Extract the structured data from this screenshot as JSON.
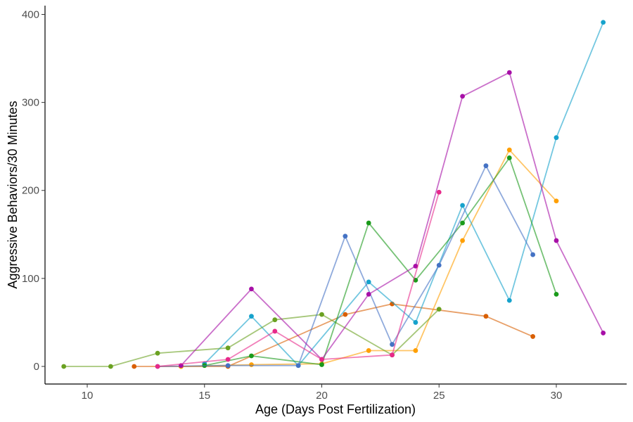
{
  "chart_data": {
    "type": "line",
    "title": "",
    "xlabel": "Age (Days Post Fertilization)",
    "ylabel": "Aggressive Behaviors/30 Minutes",
    "xlim": [
      8.2,
      33.0
    ],
    "ylim": [
      -20,
      410
    ],
    "xticks": [
      10,
      15,
      20,
      25,
      30
    ],
    "yticks": [
      0,
      100,
      200,
      300,
      400
    ],
    "grid": false,
    "legend": "none",
    "series": [
      {
        "color": "#D95F02",
        "x": [
          12,
          14,
          16,
          21,
          23,
          27,
          29
        ],
        "y": [
          0,
          0,
          0,
          59,
          71,
          57,
          34
        ]
      },
      {
        "color": "#FF9F00",
        "x": [
          14,
          17,
          20,
          22,
          24,
          26,
          28,
          30
        ],
        "y": [
          0,
          2,
          3,
          18,
          18,
          143,
          246,
          188
        ]
      },
      {
        "color": "#16A2CC",
        "x": [
          15,
          17,
          19,
          22,
          24,
          26,
          28,
          30,
          32
        ],
        "y": [
          3,
          57,
          1,
          96,
          50,
          183,
          75,
          260,
          391
        ]
      },
      {
        "color": "#6AA121",
        "x": [
          9,
          11,
          13,
          16,
          18,
          20,
          23,
          25
        ],
        "y": [
          0,
          0,
          15,
          21,
          53,
          59,
          13,
          65
        ]
      },
      {
        "color": "#1A9A1A",
        "x": [
          15,
          17,
          20,
          22,
          24,
          26,
          28,
          30
        ],
        "y": [
          1,
          12,
          2,
          163,
          98,
          163,
          237,
          82
        ]
      },
      {
        "color": "#4472C4",
        "x": [
          13,
          16,
          19,
          21,
          23,
          25,
          27,
          29
        ],
        "y": [
          0,
          1,
          1,
          148,
          25,
          115,
          228,
          127
        ]
      },
      {
        "color": "#A70FA7",
        "x": [
          14,
          17,
          20,
          22,
          24,
          26,
          28,
          30,
          32
        ],
        "y": [
          1,
          88,
          8,
          82,
          114,
          307,
          334,
          143,
          38
        ]
      },
      {
        "color": "#E7298A",
        "x": [
          13,
          16,
          18,
          20,
          23,
          25
        ],
        "y": [
          0,
          8,
          40,
          8,
          13,
          198
        ]
      }
    ]
  }
}
